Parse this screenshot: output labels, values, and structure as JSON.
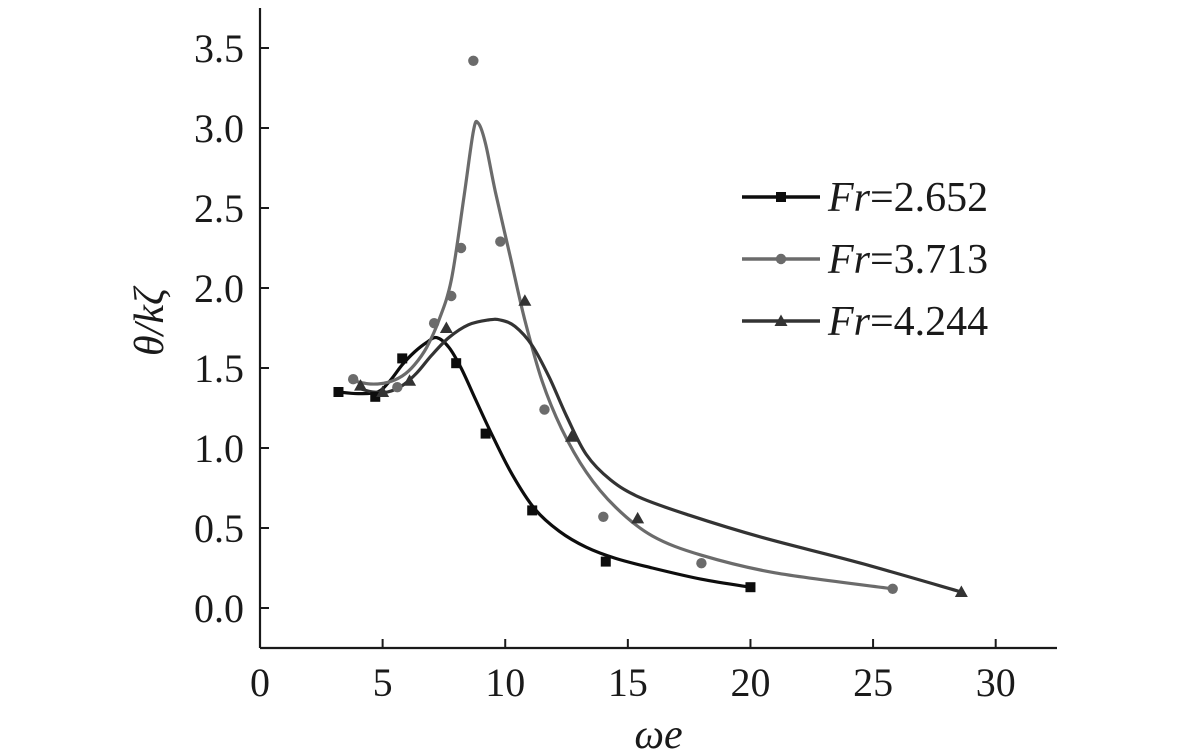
{
  "chart_data": {
    "type": "line",
    "title": "",
    "xlabel": "ωe",
    "ylabel": "θ/kζ",
    "xlim": [
      0,
      32.5
    ],
    "ylim": [
      -0.25,
      3.75
    ],
    "xticks": [
      0,
      5,
      10,
      15,
      20,
      25,
      30
    ],
    "yticks": [
      0.0,
      0.5,
      1.0,
      1.5,
      2.0,
      2.5,
      3.0,
      3.5
    ],
    "xtick_labels": [
      "0",
      "5",
      "10",
      "15",
      "20",
      "25",
      "30"
    ],
    "ytick_labels": [
      "0.0",
      "0.5",
      "1.0",
      "1.5",
      "2.0",
      "2.5",
      "3.0",
      "3.5"
    ],
    "grid": false,
    "legend_position": "top-right",
    "series": [
      {
        "name": "Fr=2.652",
        "name_italic": "Fr",
        "name_rest": "=2.652",
        "color": "#0d0d0d",
        "marker": "square",
        "points_x": [
          3.2,
          4.7,
          5.8,
          8.0,
          9.2,
          11.1,
          14.1,
          20.0
        ],
        "points_y": [
          1.35,
          1.32,
          1.56,
          1.53,
          1.09,
          0.61,
          0.29,
          0.13
        ],
        "curve_x": [
          3.2,
          4.0,
          4.8,
          5.3,
          5.8,
          6.3,
          6.8,
          7.2,
          7.7,
          8.2,
          8.8,
          9.5,
          10.3,
          11.2,
          12.2,
          13.3,
          14.5,
          16.0,
          18.0,
          20.0
        ],
        "curve_y": [
          1.35,
          1.34,
          1.35,
          1.42,
          1.52,
          1.6,
          1.66,
          1.69,
          1.63,
          1.5,
          1.3,
          1.07,
          0.83,
          0.62,
          0.48,
          0.38,
          0.31,
          0.25,
          0.18,
          0.13
        ]
      },
      {
        "name": "Fr=3.713",
        "name_italic": "Fr",
        "name_rest": "=3.713",
        "color": "#6b6b6b",
        "marker": "circle",
        "points_x": [
          3.8,
          5.6,
          7.1,
          7.8,
          8.2,
          8.7,
          9.8,
          11.6,
          14.0,
          18.0,
          25.8
        ],
        "points_y": [
          1.43,
          1.38,
          1.78,
          1.95,
          2.25,
          3.42,
          2.29,
          1.24,
          0.57,
          0.28,
          0.12
        ],
        "curve_x": [
          3.8,
          4.5,
          5.2,
          5.8,
          6.3,
          6.8,
          7.3,
          7.8,
          8.3,
          8.7,
          8.9,
          9.2,
          9.6,
          10.2,
          10.8,
          11.5,
          12.3,
          13.3,
          14.5,
          16.0,
          18.0,
          21.0,
          25.8
        ],
        "curve_y": [
          1.42,
          1.4,
          1.41,
          1.45,
          1.52,
          1.63,
          1.8,
          2.05,
          2.55,
          2.98,
          3.03,
          2.9,
          2.6,
          2.2,
          1.8,
          1.42,
          1.12,
          0.85,
          0.63,
          0.45,
          0.33,
          0.22,
          0.12
        ]
      },
      {
        "name": "Fr=4.244",
        "name_italic": "Fr",
        "name_rest": "=4.244",
        "color": "#333333",
        "marker": "triangle",
        "points_x": [
          4.1,
          5.0,
          6.1,
          7.6,
          10.8,
          12.7,
          15.4,
          28.6
        ],
        "points_y": [
          1.39,
          1.35,
          1.42,
          1.75,
          1.92,
          1.07,
          0.56,
          0.1
        ],
        "curve_x": [
          4.1,
          4.6,
          5.2,
          5.8,
          6.4,
          7.0,
          7.7,
          8.5,
          9.3,
          9.8,
          10.4,
          11.1,
          11.8,
          12.5,
          13.3,
          14.3,
          15.5,
          17.5,
          20.5,
          24.5,
          28.6
        ],
        "curve_y": [
          1.37,
          1.35,
          1.35,
          1.39,
          1.47,
          1.58,
          1.69,
          1.77,
          1.8,
          1.8,
          1.76,
          1.64,
          1.44,
          1.2,
          0.96,
          0.8,
          0.69,
          0.58,
          0.44,
          0.28,
          0.1
        ]
      }
    ]
  }
}
